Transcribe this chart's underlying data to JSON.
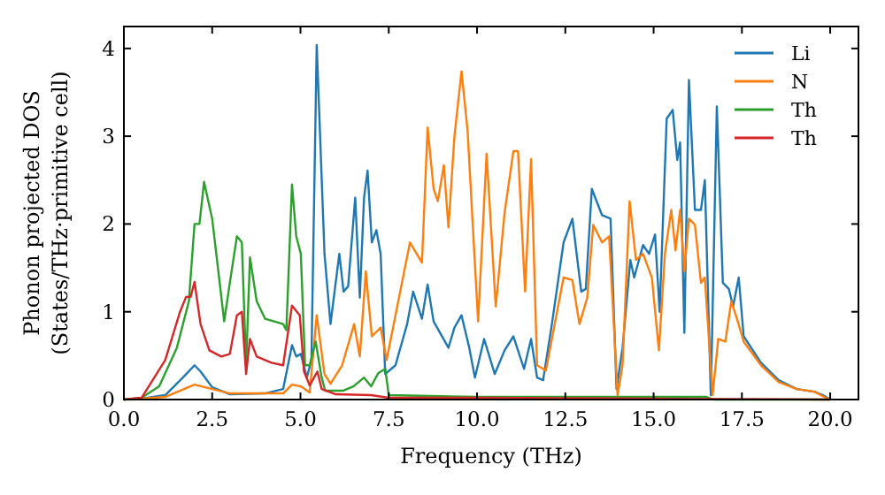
{
  "chart_data": {
    "type": "line",
    "xlabel": "Frequency (THz)",
    "ylabel": "Phonon projected DOS\n(States/THz·primitive cell)",
    "xlim": [
      0,
      20.8
    ],
    "ylim": [
      0,
      4.25
    ],
    "xticks": [
      {
        "value": 0,
        "label": "0.0"
      },
      {
        "value": 2.5,
        "label": "2.5"
      },
      {
        "value": 5,
        "label": "5.0"
      },
      {
        "value": 7.5,
        "label": "7.5"
      },
      {
        "value": 10,
        "label": "10.0"
      },
      {
        "value": 12.5,
        "label": "12.5"
      },
      {
        "value": 15,
        "label": "15.0"
      },
      {
        "value": 17.5,
        "label": "17.5"
      },
      {
        "value": 20,
        "label": "20.0"
      }
    ],
    "yticks": [
      0,
      1,
      2,
      3,
      4
    ],
    "legend": "top right",
    "grid": false,
    "marker": "none",
    "line_style": "solid",
    "series": [
      {
        "name": "Li",
        "color": "#1f77b4",
        "x": [
          0,
          0.5,
          1.17,
          1.67,
          2.0,
          2.17,
          2.5,
          3.0,
          4.0,
          4.51,
          4.76,
          4.88,
          5.01,
          5.18,
          5.31,
          5.46,
          5.68,
          5.85,
          6.1,
          6.22,
          6.35,
          6.55,
          6.68,
          6.8,
          6.9,
          7.02,
          7.15,
          7.27,
          7.4,
          7.69,
          8.02,
          8.19,
          8.44,
          8.6,
          8.77,
          9.19,
          9.36,
          9.56,
          9.78,
          9.94,
          10.2,
          10.5,
          10.78,
          11.03,
          11.33,
          11.53,
          11.7,
          11.87,
          12.12,
          12.45,
          12.7,
          12.95,
          13.08,
          13.25,
          13.54,
          13.78,
          13.95,
          14.12,
          14.34,
          14.45,
          14.7,
          14.87,
          15.04,
          15.17,
          15.37,
          15.54,
          15.67,
          15.75,
          15.87,
          16.0,
          16.17,
          16.34,
          16.45,
          16.62,
          16.79,
          16.96,
          17.13,
          17.25,
          17.41,
          17.55,
          18.04,
          18.54,
          19.05,
          19.55,
          19.8,
          20.0
        ],
        "values": [
          0,
          0.01,
          0.05,
          0.25,
          0.39,
          0.32,
          0.14,
          0.06,
          0.07,
          0.12,
          0.62,
          0.49,
          0.52,
          0.25,
          0.45,
          4.04,
          1.66,
          0.86,
          1.66,
          1.23,
          1.29,
          2.3,
          1.16,
          2.3,
          2.61,
          1.79,
          1.93,
          1.66,
          0.29,
          0.39,
          0.86,
          1.23,
          0.92,
          1.31,
          0.89,
          0.59,
          0.82,
          0.96,
          0.59,
          0.25,
          0.69,
          0.29,
          0.56,
          0.72,
          0.35,
          0.69,
          0.25,
          0.22,
          0.86,
          1.79,
          2.06,
          1.23,
          1.26,
          2.4,
          2.1,
          2.06,
          0.12,
          0.59,
          1.59,
          1.39,
          1.76,
          1.66,
          1.88,
          1.0,
          3.2,
          3.3,
          2.73,
          2.93,
          0.76,
          3.64,
          2.16,
          2.16,
          2.5,
          0.05,
          3.34,
          1.33,
          1.26,
          1.06,
          1.39,
          0.72,
          0.42,
          0.22,
          0.12,
          0.09,
          0.05,
          0
        ]
      },
      {
        "name": "N",
        "color": "#ff7f0e",
        "x": [
          0,
          0.5,
          1.17,
          2.0,
          2.5,
          3.0,
          4.51,
          4.76,
          5.01,
          5.26,
          5.46,
          5.68,
          5.85,
          6.18,
          6.52,
          6.68,
          6.85,
          7.02,
          7.27,
          7.44,
          7.77,
          8.1,
          8.44,
          8.6,
          8.77,
          8.89,
          9.06,
          9.19,
          9.36,
          9.56,
          9.73,
          10.03,
          10.27,
          10.53,
          10.78,
          11.03,
          11.16,
          11.36,
          11.53,
          11.7,
          11.95,
          12.2,
          12.45,
          12.7,
          12.9,
          13.12,
          13.29,
          13.54,
          13.74,
          13.98,
          14.12,
          14.32,
          14.5,
          14.7,
          14.95,
          15.15,
          15.32,
          15.5,
          15.62,
          15.75,
          15.87,
          16.0,
          16.17,
          16.34,
          16.45,
          16.67,
          16.83,
          17.03,
          17.2,
          17.36,
          17.55,
          18.04,
          18.54,
          19.05,
          19.55,
          19.88,
          20.0
        ],
        "values": [
          0,
          0.01,
          0.03,
          0.17,
          0.12,
          0.07,
          0.07,
          0.17,
          0.15,
          0.08,
          0.96,
          0.29,
          0.18,
          0.39,
          0.86,
          0.49,
          1.46,
          0.72,
          0.82,
          0.45,
          1.12,
          1.79,
          1.56,
          3.1,
          2.4,
          2.26,
          2.67,
          1.96,
          3.0,
          3.74,
          3.07,
          0.89,
          2.8,
          1.06,
          2.13,
          2.83,
          2.83,
          1.23,
          2.74,
          0.39,
          0.33,
          0.86,
          1.39,
          1.36,
          0.86,
          1.16,
          1.99,
          1.79,
          1.86,
          0.05,
          0.39,
          2.26,
          1.59,
          1.66,
          1.39,
          0.56,
          1.66,
          2.16,
          1.7,
          2.16,
          1.46,
          2.06,
          1.99,
          1.33,
          1.39,
          0.05,
          0.69,
          0.66,
          1.12,
          0.92,
          0.66,
          0.39,
          0.2,
          0.12,
          0.09,
          0.02,
          0
        ]
      },
      {
        "name": "Th",
        "color": "#2ca02c",
        "x": [
          0,
          0.5,
          1.0,
          1.5,
          1.84,
          2.0,
          2.14,
          2.27,
          2.5,
          2.84,
          3.0,
          3.2,
          3.34,
          3.46,
          3.57,
          3.76,
          4.0,
          4.51,
          4.6,
          4.76,
          4.88,
          5.01,
          5.13,
          5.26,
          5.43,
          5.6,
          5.7,
          6.2,
          6.5,
          6.8,
          7.0,
          7.2,
          7.4,
          7.5,
          10.0,
          12.5,
          16.5,
          16.7,
          20.0
        ],
        "values": [
          0,
          0.02,
          0.15,
          0.59,
          1.12,
          2.0,
          2.0,
          2.48,
          2.06,
          0.89,
          1.33,
          1.86,
          1.79,
          0.39,
          1.62,
          1.12,
          0.92,
          0.86,
          0.79,
          2.45,
          1.86,
          1.66,
          0.39,
          0.39,
          0.66,
          0.25,
          0.1,
          0.1,
          0.15,
          0.25,
          0.15,
          0.3,
          0.35,
          0.05,
          0.03,
          0.03,
          0.03,
          0,
          0
        ]
      },
      {
        "name": "Th",
        "color": "#d62728",
        "x": [
          0,
          0.5,
          1.17,
          1.59,
          1.76,
          1.89,
          2.0,
          2.17,
          2.42,
          2.76,
          3.0,
          3.2,
          3.34,
          3.46,
          3.57,
          3.76,
          4.18,
          4.51,
          4.76,
          4.98,
          5.1,
          5.26,
          5.48,
          5.6,
          6.0,
          7.0,
          7.5,
          10.0,
          15.0,
          20.0
        ],
        "values": [
          0,
          0.02,
          0.45,
          1.0,
          1.17,
          1.17,
          1.34,
          0.86,
          0.56,
          0.49,
          0.52,
          0.96,
          1.0,
          0.29,
          0.69,
          0.49,
          0.42,
          0.39,
          1.07,
          0.96,
          0.32,
          0.16,
          0.32,
          0.12,
          0.06,
          0.05,
          0.02,
          0.02,
          0.01,
          0
        ]
      }
    ]
  }
}
